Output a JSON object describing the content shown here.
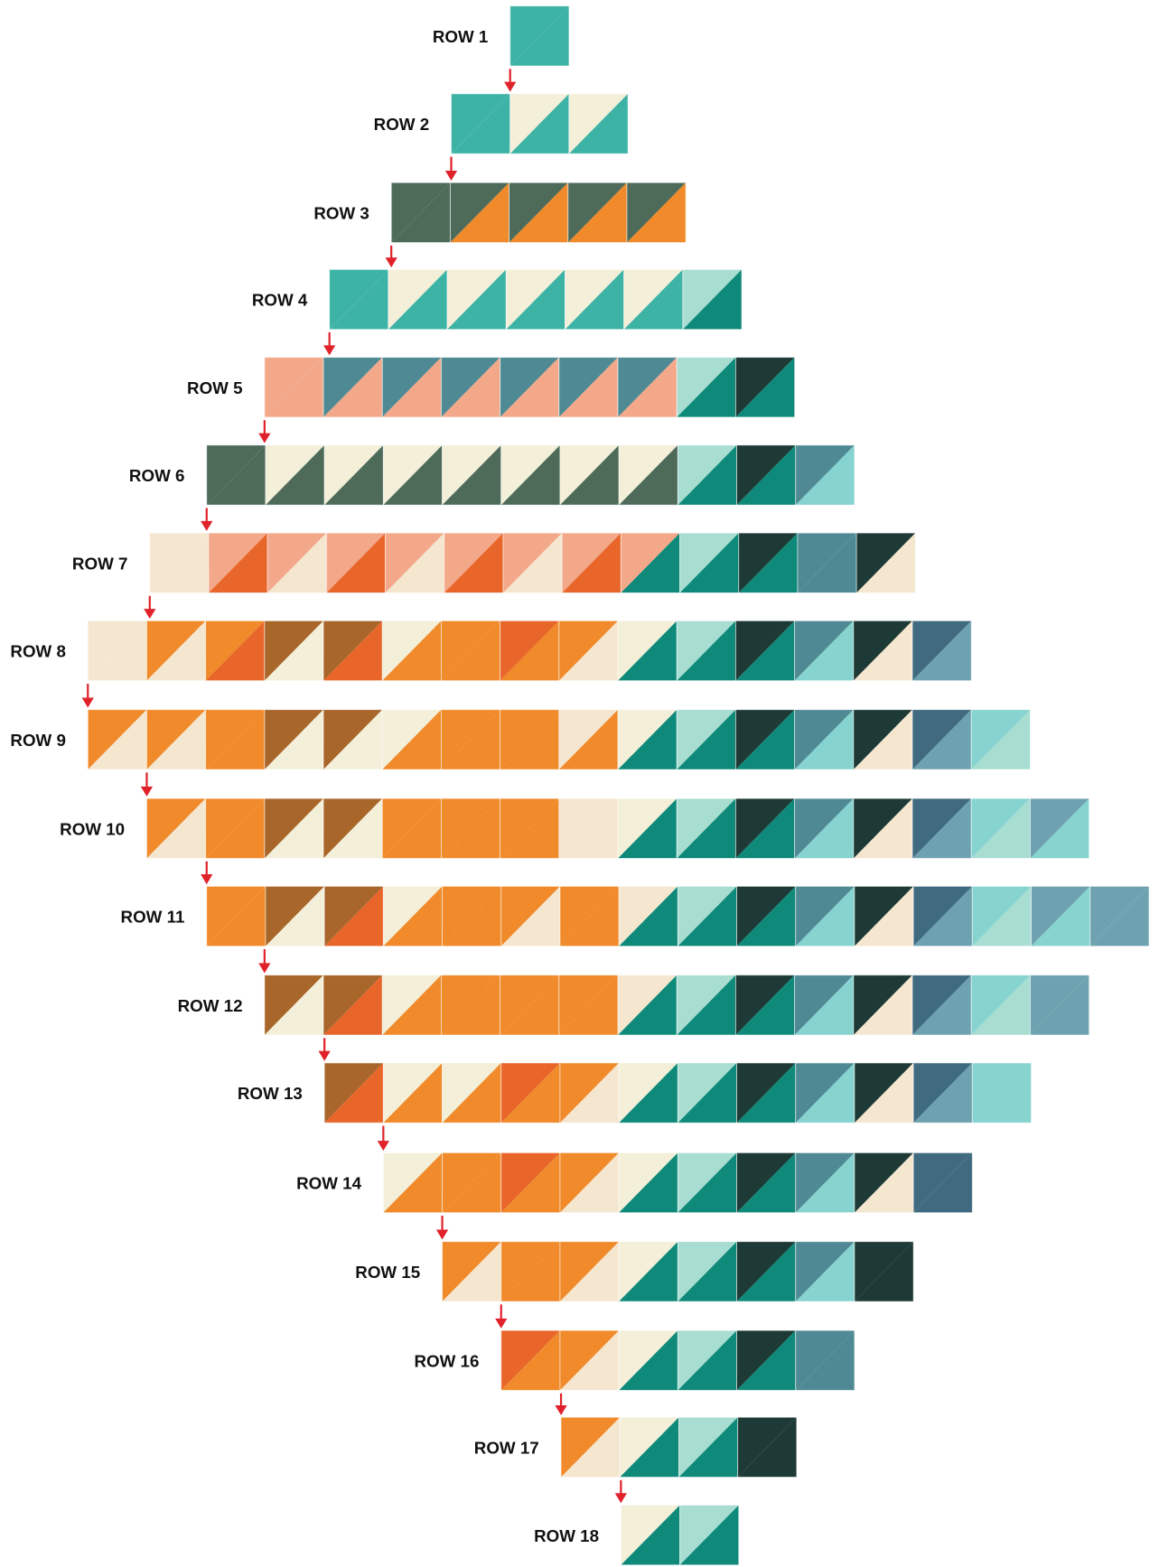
{
  "rows": [
    {
      "label": "ROW 1"
    },
    {
      "label": "ROW 2"
    },
    {
      "label": "ROW 3"
    },
    {
      "label": "ROW 4"
    },
    {
      "label": "ROW 5"
    },
    {
      "label": "ROW 6"
    },
    {
      "label": "ROW 7"
    },
    {
      "label": "ROW 8"
    },
    {
      "label": "ROW 9"
    },
    {
      "label": "ROW 10"
    },
    {
      "label": "ROW 11"
    },
    {
      "label": "ROW 12"
    },
    {
      "label": "ROW 13"
    },
    {
      "label": "ROW 14"
    },
    {
      "label": "ROW 15"
    },
    {
      "label": "ROW 16"
    },
    {
      "label": "ROW 17"
    },
    {
      "label": "ROW 18"
    }
  ]
}
